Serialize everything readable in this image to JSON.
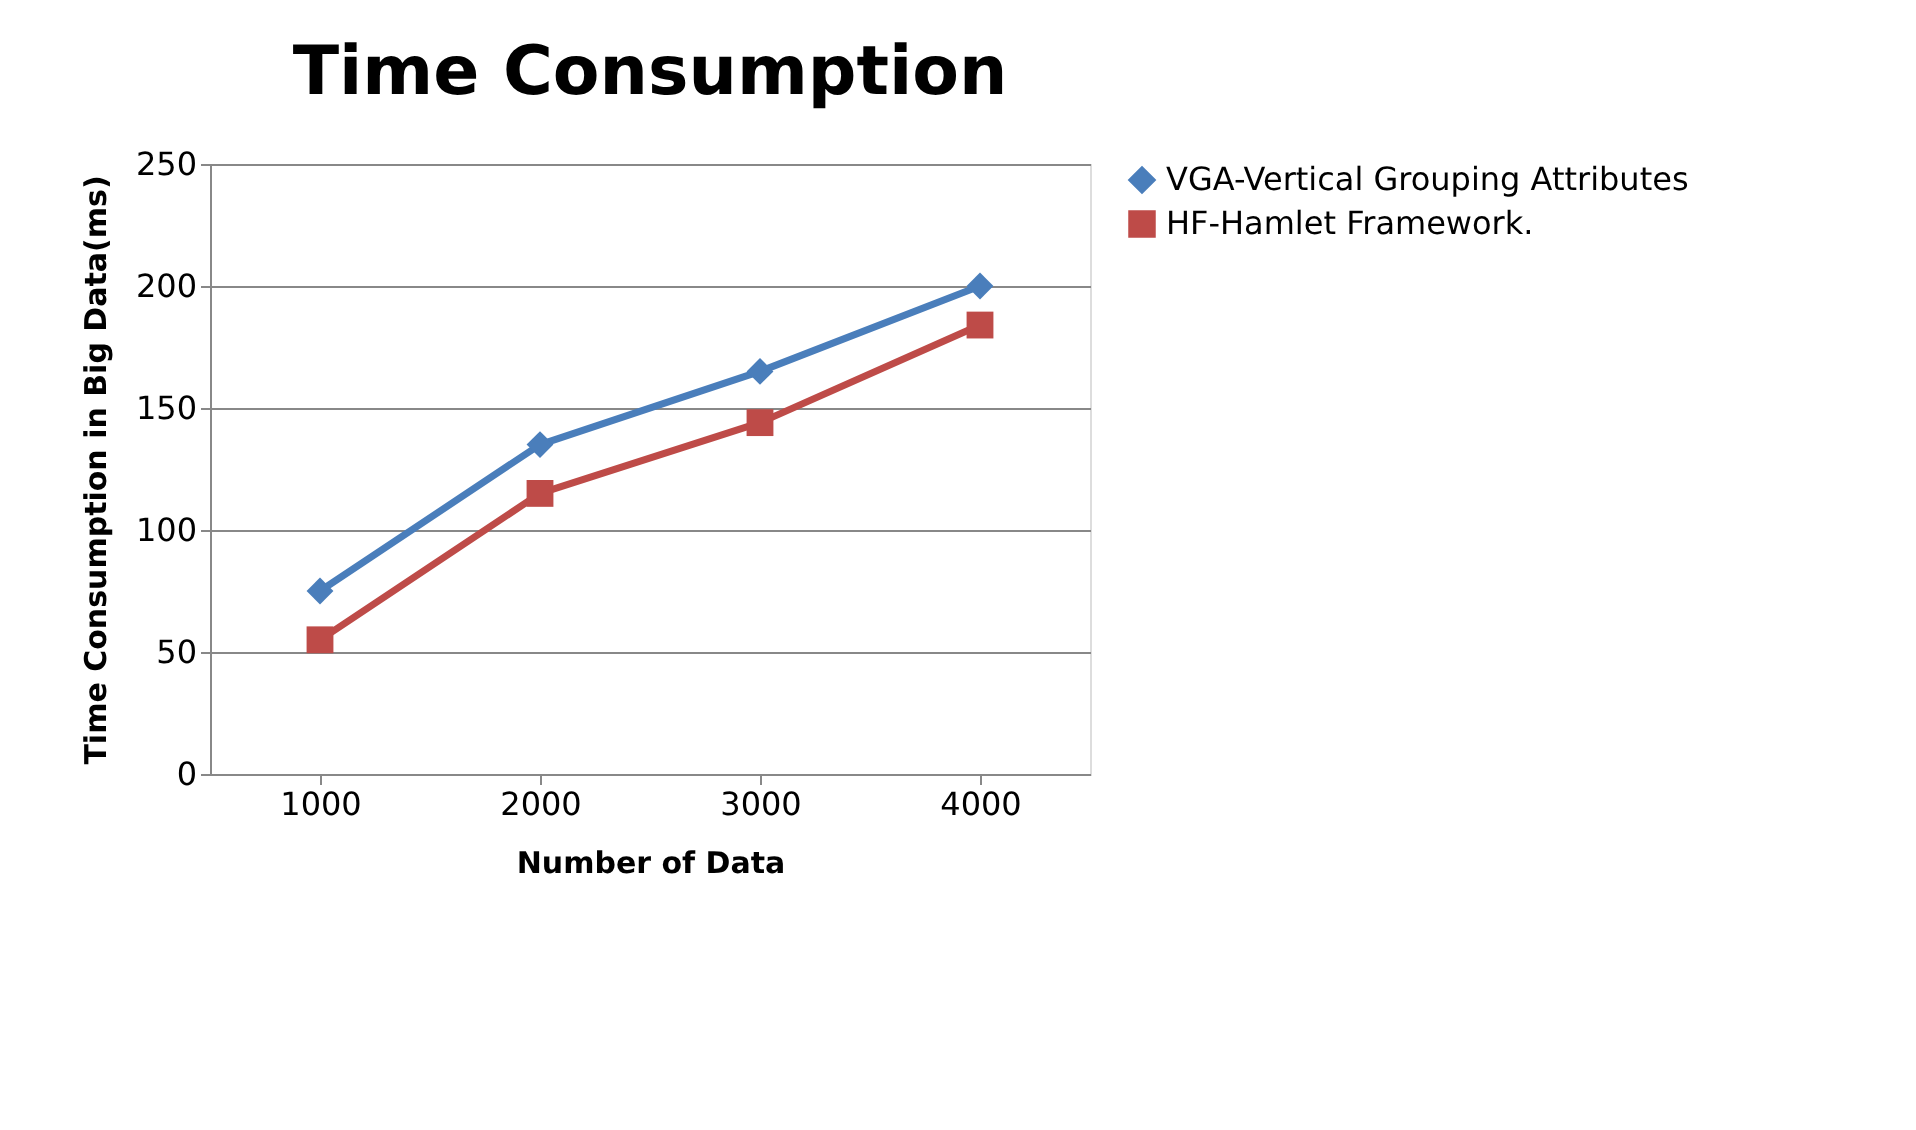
{
  "chart_data": {
    "type": "line",
    "title": "Time Consumption",
    "xlabel": "Number of Data",
    "ylabel": "Time Consumption in Big Data(ms)",
    "categories": [
      "1000",
      "2000",
      "3000",
      "4000"
    ],
    "series": [
      {
        "name": "VGA-Vertical Grouping Attributes",
        "color": "#4a7ebb",
        "marker": "diamond",
        "values": [
          75,
          135,
          165,
          200
        ]
      },
      {
        "name": "HF-Hamlet Framework.",
        "color": "#be4b48",
        "marker": "square",
        "values": [
          55,
          115,
          144,
          184
        ]
      }
    ],
    "ylim": [
      0,
      250
    ],
    "yticks": [
      0,
      50,
      100,
      150,
      200,
      250
    ],
    "grid": "y",
    "legend": "right",
    "line_style": "solid"
  }
}
